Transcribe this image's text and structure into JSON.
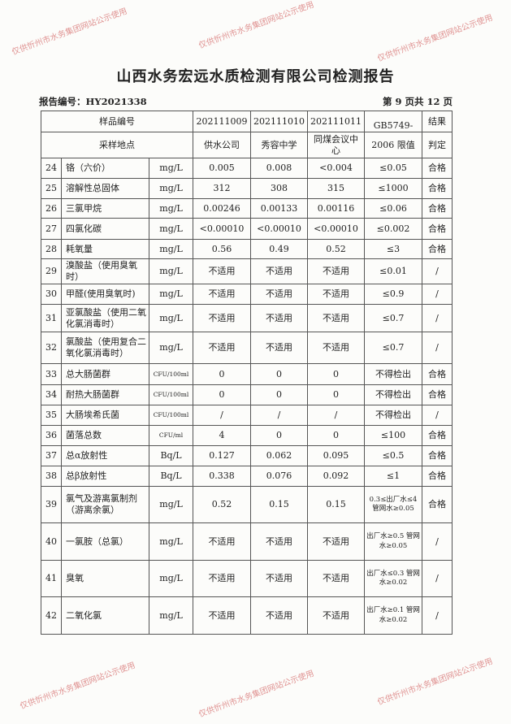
{
  "title": "山西水务宏远水质检测有限公司检测报告",
  "report_no": "报告编号：HY2021338",
  "page_info": "第 9 页共 12 页",
  "header": {
    "sample_no_label": "样品编号",
    "site_label": "采样地点",
    "samples": [
      {
        "no": "202111009",
        "site": "供水公司"
      },
      {
        "no": "202111010",
        "site": "秀容中学"
      },
      {
        "no": "202111011",
        "site": "同煤会议中心"
      }
    ],
    "limit_label_1": "GB5749-",
    "limit_label_2": "2006 限值",
    "result_label_1": "结果",
    "result_label_2": "判定"
  },
  "rows": [
    {
      "n": "24",
      "item": "铬（六价）",
      "unit": "mg/L",
      "v1": "0.005",
      "v2": "0.008",
      "v3": "<0.004",
      "limit": "≤0.05",
      "result": "合格"
    },
    {
      "n": "25",
      "item": "溶解性总固体",
      "unit": "mg/L",
      "v1": "312",
      "v2": "308",
      "v3": "315",
      "limit": "≤1000",
      "result": "合格"
    },
    {
      "n": "26",
      "item": "三氯甲烷",
      "unit": "mg/L",
      "v1": "0.00246",
      "v2": "0.00133",
      "v3": "0.00116",
      "limit": "≤0.06",
      "result": "合格"
    },
    {
      "n": "27",
      "item": "四氯化碳",
      "unit": "mg/L",
      "v1": "<0.00010",
      "v2": "<0.00010",
      "v3": "<0.00010",
      "limit": "≤0.002",
      "result": "合格"
    },
    {
      "n": "28",
      "item": "耗氧量",
      "unit": "mg/L",
      "v1": "0.56",
      "v2": "0.49",
      "v3": "0.52",
      "limit": "≤3",
      "result": "合格"
    },
    {
      "n": "29",
      "item": "溴酸盐（使用臭氧时）",
      "unit": "mg/L",
      "v1": "不适用",
      "v2": "不适用",
      "v3": "不适用",
      "limit": "≤0.01",
      "result": "/"
    },
    {
      "n": "30",
      "item": "甲醛(使用臭氧时)",
      "unit": "mg/L",
      "v1": "不适用",
      "v2": "不适用",
      "v3": "不适用",
      "limit": "≤0.9",
      "result": "/"
    },
    {
      "n": "31",
      "item": "亚氯酸盐（使用二氧化氯消毒时）",
      "unit": "mg/L",
      "v1": "不适用",
      "v2": "不适用",
      "v3": "不适用",
      "limit": "≤0.7",
      "result": "/"
    },
    {
      "n": "32",
      "item": "氯酸盐（使用复合二氧化氯消毒时）",
      "unit": "mg/L",
      "v1": "不适用",
      "v2": "不适用",
      "v3": "不适用",
      "limit": "≤0.7",
      "result": "/"
    },
    {
      "n": "33",
      "item": "总大肠菌群",
      "unit": "CFU/100ml",
      "v1": "0",
      "v2": "0",
      "v3": "0",
      "limit": "不得检出",
      "result": "合格"
    },
    {
      "n": "34",
      "item": "耐热大肠菌群",
      "unit": "CFU/100ml",
      "v1": "0",
      "v2": "0",
      "v3": "0",
      "limit": "不得检出",
      "result": "合格"
    },
    {
      "n": "35",
      "item": "大肠埃希氏菌",
      "unit": "CFU/100ml",
      "v1": "/",
      "v2": "/",
      "v3": "/",
      "limit": "不得检出",
      "result": "/"
    },
    {
      "n": "36",
      "item": "菌落总数",
      "unit": "CFU/ml",
      "v1": "4",
      "v2": "0",
      "v3": "0",
      "limit": "≤100",
      "result": "合格"
    },
    {
      "n": "37",
      "item": "总α放射性",
      "unit": "Bq/L",
      "v1": "0.127",
      "v2": "0.062",
      "v3": "0.095",
      "limit": "≤0.5",
      "result": "合格"
    },
    {
      "n": "38",
      "item": "总β放射性",
      "unit": "Bq/L",
      "v1": "0.338",
      "v2": "0.076",
      "v3": "0.092",
      "limit": "≤1",
      "result": "合格"
    },
    {
      "n": "39",
      "item": "氯气及游离氯制剂（游离余氯）",
      "unit": "mg/L",
      "v1": "0.52",
      "v2": "0.15",
      "v3": "0.15",
      "limit": "0.3≤出厂水≤4 管网水≥0.05",
      "result": "合格"
    },
    {
      "n": "40",
      "item": "一氯胺（总氯）",
      "unit": "mg/L",
      "v1": "不适用",
      "v2": "不适用",
      "v3": "不适用",
      "limit": "出厂水≥0.5 管网水≥0.05",
      "result": "/"
    },
    {
      "n": "41",
      "item": "臭氧",
      "unit": "mg/L",
      "v1": "不适用",
      "v2": "不适用",
      "v3": "不适用",
      "limit": "出厂水≤0.3 管网水≥0.02",
      "result": "/"
    },
    {
      "n": "42",
      "item": "二氧化氯",
      "unit": "mg/L",
      "v1": "不适用",
      "v2": "不适用",
      "v3": "不适用",
      "limit": "出厂水≥0.1 管网水≥0.02",
      "result": "/"
    }
  ],
  "watermark": "仅供忻州市水务集团网站公示使用"
}
